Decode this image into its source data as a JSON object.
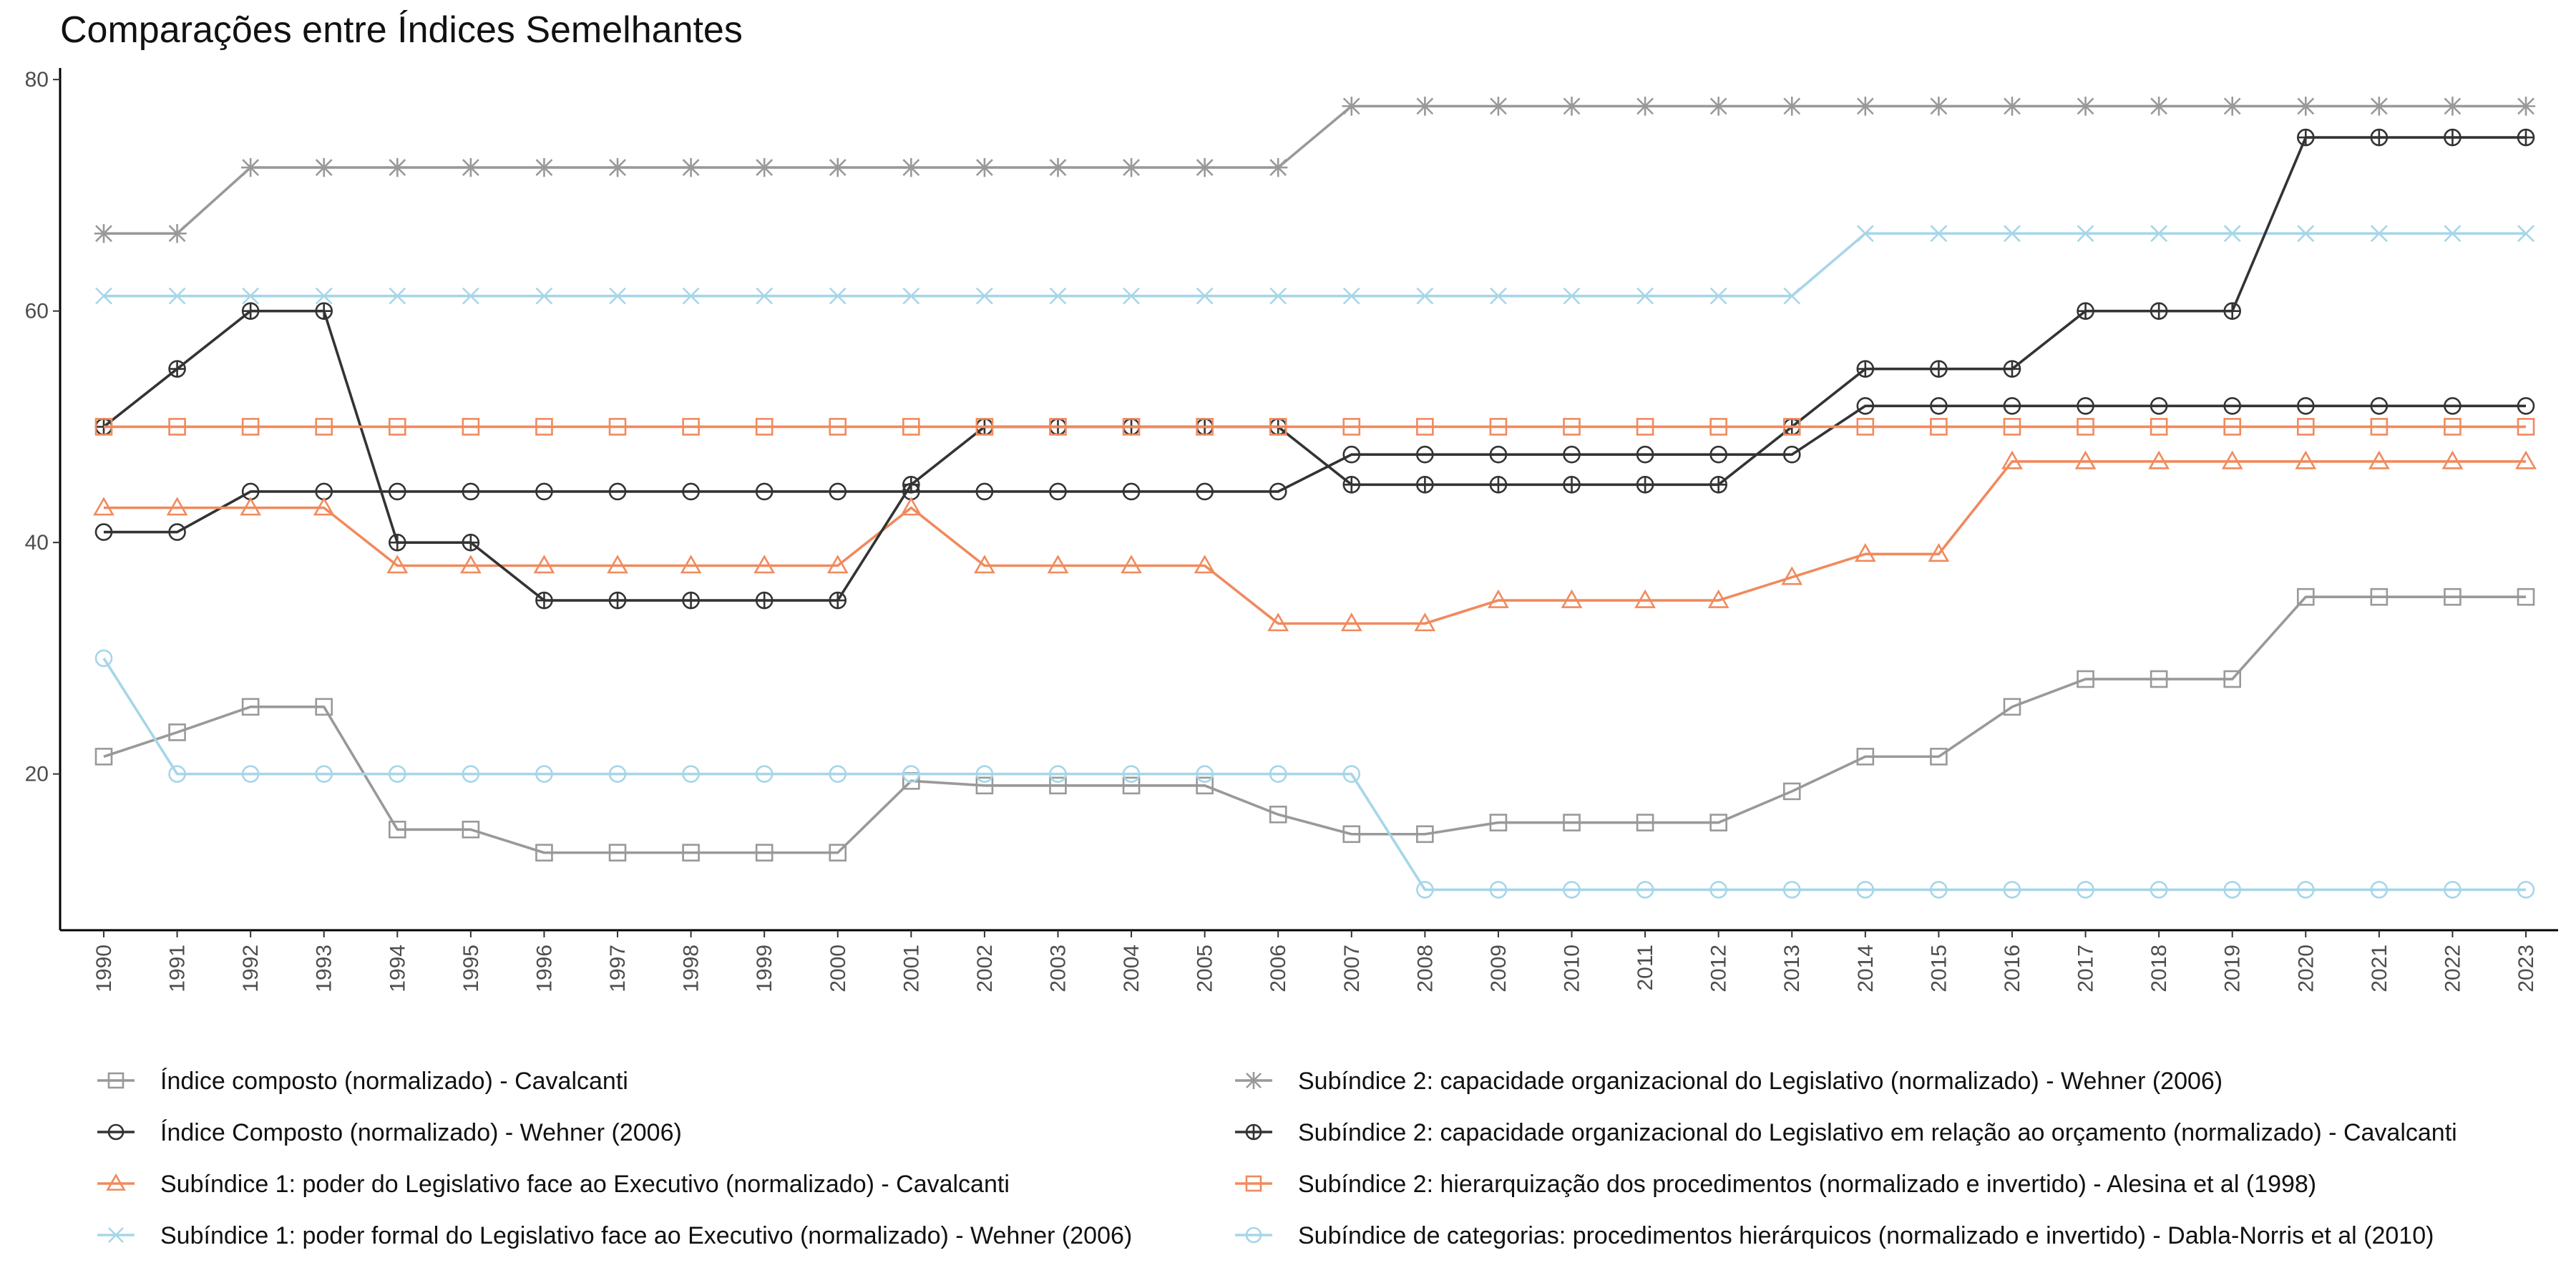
{
  "chart_data": {
    "type": "line",
    "title": "Comparações entre Índices Semelhantes",
    "xlabel": "",
    "ylabel": "",
    "x": [
      "1990",
      "1991",
      "1992",
      "1993",
      "1994",
      "1995",
      "1996",
      "1997",
      "1998",
      "1999",
      "2000",
      "2001",
      "2002",
      "2003",
      "2004",
      "2005",
      "2006",
      "2007",
      "2008",
      "2009",
      "2010",
      "2011",
      "2012",
      "2013",
      "2014",
      "2015",
      "2016",
      "2017",
      "2018",
      "2019",
      "2020",
      "2021",
      "2022",
      "2023"
    ],
    "ylim": [
      6.5,
      81
    ],
    "yticks": [
      20,
      40,
      60,
      80
    ],
    "grid": false,
    "legend_position": "bottom",
    "series": [
      {
        "name": "Índice composto (normalizado) - Cavalcanti",
        "color": "#999999",
        "marker": "square",
        "values": [
          21.5,
          23.6,
          25.8,
          25.8,
          15.2,
          15.2,
          13.2,
          13.2,
          13.2,
          13.2,
          13.2,
          19.4,
          19.0,
          19.0,
          19.0,
          19.0,
          16.5,
          14.8,
          14.8,
          15.8,
          15.8,
          15.8,
          15.8,
          18.5,
          21.5,
          21.5,
          25.8,
          28.2,
          28.2,
          28.2,
          35.3,
          35.3,
          35.3,
          35.3
        ]
      },
      {
        "name": "Índice Composto (normalizado) - Wehner (2006)",
        "color": "#333333",
        "marker": "circle",
        "values": [
          40.9,
          40.9,
          44.4,
          44.4,
          44.4,
          44.4,
          44.4,
          44.4,
          44.4,
          44.4,
          44.4,
          44.4,
          44.4,
          44.4,
          44.4,
          44.4,
          44.4,
          47.6,
          47.6,
          47.6,
          47.6,
          47.6,
          47.6,
          47.6,
          51.8,
          51.8,
          51.8,
          51.8,
          51.8,
          51.8,
          51.8,
          51.8,
          51.8,
          51.8
        ]
      },
      {
        "name": "Subíndice 1: poder do Legislativo face ao Executivo (normalizado) - Cavalcanti",
        "color": "#f08a5d",
        "marker": "triangle",
        "values": [
          43,
          43,
          43,
          43,
          38,
          38,
          38,
          38,
          38,
          38,
          38,
          43,
          38,
          38,
          38,
          38,
          33,
          33,
          33,
          35,
          35,
          35,
          35,
          37,
          39,
          39,
          47,
          47,
          47,
          47,
          47,
          47,
          47,
          47
        ]
      },
      {
        "name": "Subíndice 1: poder formal do Legislativo face ao Executivo (normalizado) - Wehner (2006)",
        "color": "#a6d6e8",
        "marker": "x",
        "values": [
          61.3,
          61.3,
          61.3,
          61.3,
          61.3,
          61.3,
          61.3,
          61.3,
          61.3,
          61.3,
          61.3,
          61.3,
          61.3,
          61.3,
          61.3,
          61.3,
          61.3,
          61.3,
          61.3,
          61.3,
          61.3,
          61.3,
          61.3,
          61.3,
          66.7,
          66.7,
          66.7,
          66.7,
          66.7,
          66.7,
          66.7,
          66.7,
          66.7,
          66.7
        ]
      },
      {
        "name": "Subíndice 2: capacidade organizacional do Legislativo (normalizado) - Wehner (2006)",
        "color": "#999999",
        "marker": "asterisk",
        "values": [
          66.7,
          66.7,
          72.4,
          72.4,
          72.4,
          72.4,
          72.4,
          72.4,
          72.4,
          72.4,
          72.4,
          72.4,
          72.4,
          72.4,
          72.4,
          72.4,
          72.4,
          77.7,
          77.7,
          77.7,
          77.7,
          77.7,
          77.7,
          77.7,
          77.7,
          77.7,
          77.7,
          77.7,
          77.7,
          77.7,
          77.7,
          77.7,
          77.7,
          77.7
        ]
      },
      {
        "name": "Subíndice 2: capacidade organizacional do Legislativo em relação ao orçamento (normalizado) - Cavalcanti",
        "color": "#333333",
        "marker": "circleplus",
        "values": [
          50,
          55,
          60,
          60,
          40,
          40,
          35,
          35,
          35,
          35,
          35,
          45,
          50,
          50,
          50,
          50,
          50,
          45,
          45,
          45,
          45,
          45,
          45,
          50,
          55,
          55,
          55,
          60,
          60,
          60,
          75,
          75,
          75,
          75
        ]
      },
      {
        "name": "Subíndice 2: hierarquização dos procedimentos (normalizado e invertido) - Alesina et al (1998)",
        "color": "#f08a5d",
        "marker": "square",
        "values": [
          50,
          50,
          50,
          50,
          50,
          50,
          50,
          50,
          50,
          50,
          50,
          50,
          50,
          50,
          50,
          50,
          50,
          50,
          50,
          50,
          50,
          50,
          50,
          50,
          50,
          50,
          50,
          50,
          50,
          50,
          50,
          50,
          50,
          50
        ]
      },
      {
        "name": "Subíndice de categorias: procedimentos hierárquicos (normalizado e invertido) - Dabla-Norris et al (2010)",
        "color": "#a6d6e8",
        "marker": "circle",
        "values": [
          30,
          20,
          20,
          20,
          20,
          20,
          20,
          20,
          20,
          20,
          20,
          20,
          20,
          20,
          20,
          20,
          20,
          20,
          10,
          10,
          10,
          10,
          10,
          10,
          10,
          10,
          10,
          10,
          10,
          10,
          10,
          10,
          10,
          10
        ]
      }
    ]
  }
}
